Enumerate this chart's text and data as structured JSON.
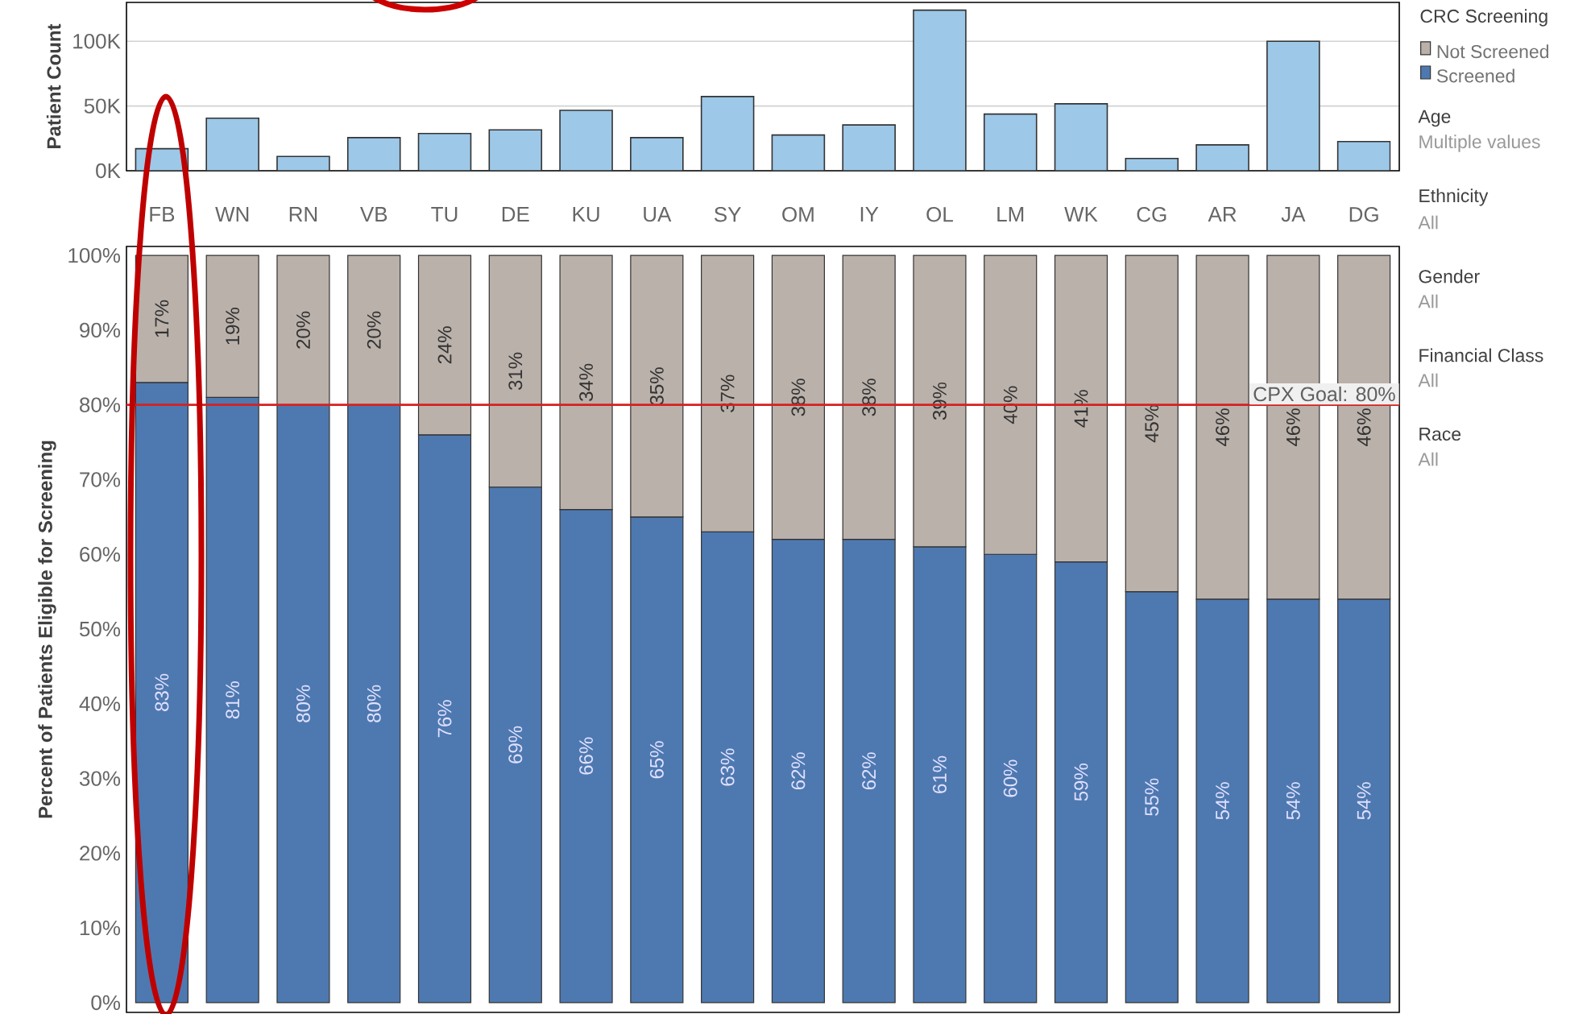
{
  "chart_data": [
    {
      "type": "bar",
      "ylabel": "Patient Count",
      "categories": [
        "FB",
        "WN",
        "RN",
        "VB",
        "TU",
        "DE",
        "KU",
        "UA",
        "SY",
        "OM",
        "IY",
        "OL",
        "LM",
        "WK",
        "CG",
        "AR",
        "JA",
        "DG"
      ],
      "values": [
        17000,
        40600,
        11000,
        25600,
        28800,
        31600,
        46600,
        25600,
        57300,
        27600,
        35400,
        124000,
        43800,
        51700,
        9500,
        20000,
        100000,
        22500
      ],
      "color": "#9dc8e8",
      "ylim": [
        0,
        130000
      ],
      "yticks": [
        {
          "value": 0,
          "label": "0K"
        },
        {
          "value": 50000,
          "label": "50K"
        },
        {
          "value": 100000,
          "label": "100K"
        }
      ],
      "grid": "y"
    },
    {
      "type": "bar",
      "stacked": true,
      "ylabel": "Percent of Patients Eligible for Screening",
      "categories": [
        null,
        null,
        null,
        null,
        null,
        null,
        null,
        null,
        null,
        null,
        null,
        null,
        null,
        null,
        null,
        null,
        null,
        null
      ],
      "series": [
        {
          "name": "Screened",
          "color": "#4e79b0",
          "values": [
            83,
            81,
            80,
            80,
            76,
            69,
            66,
            65,
            63,
            62,
            62,
            61,
            60,
            59,
            55,
            54,
            54,
            54
          ],
          "value_labels": [
            "83%",
            "81%",
            "80%",
            "80%",
            "76%",
            "69%",
            "66%",
            "65%",
            "63%",
            "62%",
            "62%",
            "61%",
            "60%",
            "59%",
            "55%",
            "54%",
            "54%",
            "54%"
          ]
        },
        {
          "name": "Not Screened",
          "color": "#bab1aa",
          "values": [
            17,
            19,
            20,
            20,
            24,
            31,
            34,
            35,
            37,
            38,
            38,
            39,
            40,
            41,
            45,
            46,
            46,
            46
          ],
          "value_labels": [
            "17%",
            "19%",
            "20%",
            "20%",
            "24%",
            "31%",
            "34%",
            "35%",
            "37%",
            "38%",
            "38%",
            "39%",
            "40%",
            "41%",
            "45%",
            "46%",
            "46%",
            "46%"
          ]
        }
      ],
      "ylim": [
        -1.3,
        101.2
      ],
      "yticks": [
        {
          "value": 0,
          "label": "0%"
        },
        {
          "value": 10,
          "label": "10%"
        },
        {
          "value": 20,
          "label": "20%"
        },
        {
          "value": 30,
          "label": "30%"
        },
        {
          "value": 40,
          "label": "40%"
        },
        {
          "value": 50,
          "label": "50%"
        },
        {
          "value": 60,
          "label": "60%"
        },
        {
          "value": 70,
          "label": "70%"
        },
        {
          "value": 80,
          "label": "80%"
        },
        {
          "value": 90,
          "label": "90%"
        },
        {
          "value": 100,
          "label": "100%"
        }
      ],
      "ref_lines": [
        {
          "axis": "y",
          "value": 80,
          "label": "CPX Goal: 80%",
          "color": "#d62020"
        }
      ],
      "legend": "right",
      "legend_title": "CRC Screening"
    },
    {
      "type": "other",
      "annotations": [
        "Age",
        "Multiple values",
        "Ethnicity",
        "All",
        "Gender",
        "All",
        "Financial Class",
        "All",
        "Race",
        "All"
      ]
    }
  ]
}
